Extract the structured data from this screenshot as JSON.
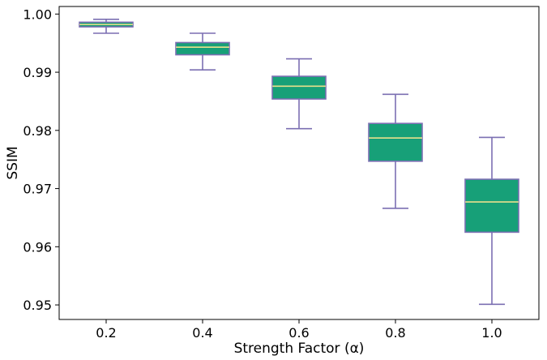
{
  "chart_data": {
    "type": "box",
    "title": "",
    "xlabel": "Strength Factor (α)",
    "ylabel": "SSIM",
    "ylim": [
      0.9475,
      1.0013
    ],
    "yticks": [
      "0.95",
      "0.96",
      "0.97",
      "0.98",
      "0.99",
      "1.00"
    ],
    "categories": [
      "0.2",
      "0.4",
      "0.6",
      "0.8",
      "1.0"
    ],
    "boxes": [
      {
        "category": "0.2",
        "whisker_low": 0.9967,
        "q1": 0.9978,
        "median": 0.9982,
        "q3": 0.9986,
        "whisker_high": 0.9991
      },
      {
        "category": "0.4",
        "whisker_low": 0.9904,
        "q1": 0.993,
        "median": 0.9943,
        "q3": 0.9951,
        "whisker_high": 0.9967
      },
      {
        "category": "0.6",
        "whisker_low": 0.9803,
        "q1": 0.9854,
        "median": 0.9876,
        "q3": 0.9893,
        "whisker_high": 0.9923
      },
      {
        "category": "0.8",
        "whisker_low": 0.9666,
        "q1": 0.9747,
        "median": 0.9787,
        "q3": 0.9812,
        "whisker_high": 0.9862
      },
      {
        "category": "1.0",
        "whisker_low": 0.9501,
        "q1": 0.9625,
        "median": 0.9677,
        "q3": 0.9716,
        "whisker_high": 0.9788
      }
    ],
    "grid": false,
    "colors": {
      "box_fill": "#17a078",
      "box_edge": "#7b6fb2",
      "median": "#e8e08c",
      "whisker": "#7b6fb2"
    }
  }
}
